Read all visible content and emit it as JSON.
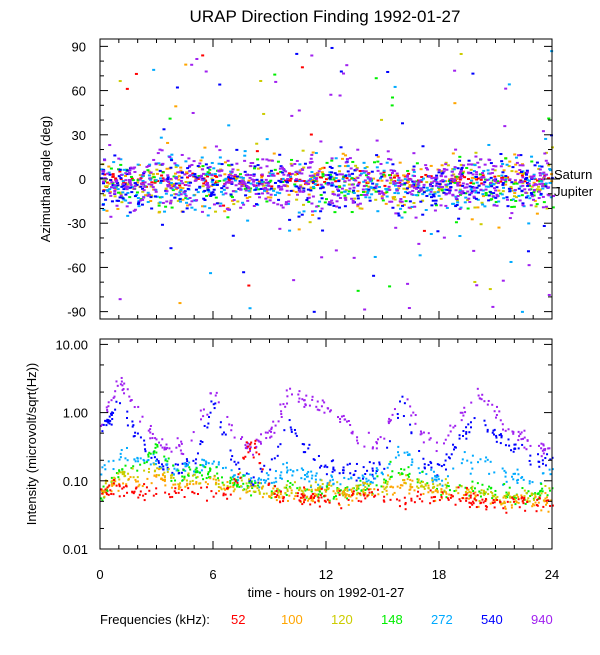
{
  "chart_data": [
    {
      "type": "scatter",
      "title": "URAP Direction Finding  1992-01-27",
      "xlabel": "",
      "ylabel": "Azimuthal angle (deg)",
      "xlim": [
        0,
        24
      ],
      "ylim": [
        -95,
        95
      ],
      "yticks": [
        "90",
        "60",
        "30",
        "0",
        "-30",
        "-60",
        "-90"
      ],
      "ytick_values": [
        90,
        60,
        30,
        0,
        -30,
        -60,
        -90
      ],
      "annotations": [
        {
          "text": "Saturn",
          "y": 0
        },
        {
          "text": "Jupiter",
          "y": -6
        }
      ],
      "series_center_deg": {
        "52": 0,
        "100": -3,
        "120": -3,
        "148": -3,
        "272": -4,
        "540": -4,
        "940": -2
      }
    },
    {
      "type": "scatter",
      "ylabel": "Intensity (microvolt/sqrt(Hz))",
      "xlabel": "time - hours on 1992-01-27",
      "xlim": [
        0,
        24
      ],
      "ylim": [
        0.01,
        12
      ],
      "yscale": "log",
      "yticks": [
        "10.00",
        "1.00",
        "0.10",
        "0.01"
      ],
      "ytick_values": [
        10,
        1,
        0.1,
        0.01
      ],
      "xticks": [
        "0",
        "6",
        "12",
        "18",
        "24"
      ],
      "xtick_values": [
        0,
        6,
        12,
        18,
        24
      ],
      "hours": [
        0,
        1,
        2,
        3,
        4,
        5,
        6,
        7,
        8,
        9,
        10,
        11,
        12,
        13,
        14,
        15,
        16,
        17,
        18,
        19,
        20,
        21,
        22,
        23,
        24
      ],
      "series": [
        {
          "name": "52",
          "color": "#ff0000",
          "values": [
            0.07,
            0.08,
            0.07,
            0.07,
            0.07,
            0.07,
            0.07,
            0.08,
            0.4,
            0.07,
            0.06,
            0.06,
            0.06,
            0.06,
            0.06,
            0.06,
            0.05,
            0.05,
            0.06,
            0.06,
            0.05,
            0.05,
            0.05,
            0.05,
            0.05
          ]
        },
        {
          "name": "100",
          "color": "#ffa500",
          "values": [
            0.07,
            0.1,
            0.1,
            0.12,
            0.09,
            0.1,
            0.09,
            0.08,
            0.07,
            0.06,
            0.06,
            0.06,
            0.07,
            0.06,
            0.07,
            0.08,
            0.09,
            0.08,
            0.07,
            0.07,
            0.06,
            0.05,
            0.05,
            0.05,
            0.05
          ]
        },
        {
          "name": "120",
          "color": "#cccc00",
          "values": [
            0.08,
            0.13,
            0.14,
            0.15,
            0.11,
            0.12,
            0.1,
            0.09,
            0.08,
            0.07,
            0.07,
            0.07,
            0.08,
            0.07,
            0.08,
            0.09,
            0.11,
            0.09,
            0.08,
            0.08,
            0.07,
            0.06,
            0.06,
            0.06,
            0.07
          ]
        },
        {
          "name": "148",
          "color": "#00ee00",
          "values": [
            0.06,
            0.15,
            0.15,
            0.35,
            0.12,
            0.15,
            0.12,
            0.1,
            0.08,
            0.07,
            0.08,
            0.07,
            0.07,
            0.07,
            0.08,
            0.1,
            0.15,
            0.1,
            0.07,
            0.08,
            0.08,
            0.07,
            0.06,
            0.07,
            0.08
          ]
        },
        {
          "name": "272",
          "color": "#00aaff",
          "values": [
            0.15,
            0.25,
            0.2,
            0.2,
            0.15,
            0.15,
            0.2,
            0.12,
            0.1,
            0.1,
            0.15,
            0.12,
            0.1,
            0.1,
            0.1,
            0.15,
            0.3,
            0.15,
            0.1,
            0.2,
            0.2,
            0.15,
            0.12,
            0.1,
            0.15
          ]
        },
        {
          "name": "540",
          "color": "#0000ff",
          "values": [
            0.5,
            1.5,
            0.4,
            0.2,
            0.15,
            0.2,
            1.5,
            0.2,
            0.1,
            0.2,
            0.6,
            0.3,
            0.15,
            0.15,
            0.12,
            0.2,
            1.5,
            0.2,
            0.15,
            0.4,
            0.9,
            0.5,
            0.3,
            0.2,
            0.2
          ]
        },
        {
          "name": "940",
          "color": "#a020f0",
          "values": [
            0.7,
            3,
            1.0,
            0.35,
            0.3,
            0.5,
            2.5,
            0.5,
            0.3,
            0.5,
            2,
            1.5,
            1.2,
            0.8,
            0.3,
            0.4,
            2.5,
            0.5,
            0.3,
            0.8,
            2,
            1,
            0.5,
            0.3,
            0.35
          ]
        }
      ]
    }
  ],
  "legend": {
    "label": "Frequencies (kHz):",
    "items": [
      {
        "text": "52",
        "color": "#ff0000"
      },
      {
        "text": "100",
        "color": "#ffa500"
      },
      {
        "text": "120",
        "color": "#cccc00"
      },
      {
        "text": "148",
        "color": "#00ee00"
      },
      {
        "text": "272",
        "color": "#00aaff"
      },
      {
        "text": "540",
        "color": "#0000ff"
      },
      {
        "text": "940",
        "color": "#a020f0"
      }
    ]
  }
}
